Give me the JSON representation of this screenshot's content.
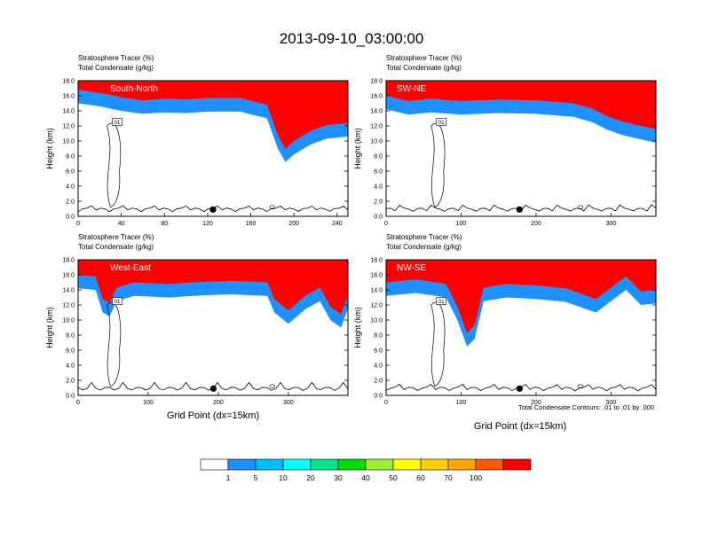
{
  "figure": {
    "title": "2013-09-10_03:00:00",
    "contour_note": "Total Condensate Contours: .01 to .01 by .000",
    "xlabel": "Grid Point (dx=15km)",
    "ylabel": "Height (km)",
    "field_labels": [
      "Stratosphere Tracer   (%)",
      "Total Condensate   (g/kg)"
    ]
  },
  "colors": {
    "levels": [
      "#ffffff",
      "#1e90ff",
      "#00bfff",
      "#00ffff",
      "#00e68a",
      "#00dd00",
      "#9aee33",
      "#ffff00",
      "#ffd000",
      "#ffa500",
      "#ff5a00",
      "#ff0000"
    ]
  },
  "colorbar": {
    "labels": [
      "1",
      "5",
      "10",
      "20",
      "30",
      "40",
      "50",
      "60",
      "70",
      "100"
    ]
  },
  "chart_data": [
    {
      "type": "heatmap",
      "panel": "South-North",
      "title": "South-North",
      "xlim": [
        0,
        250
      ],
      "ylim": [
        0,
        18
      ],
      "xticks": [
        0,
        40,
        80,
        120,
        160,
        200,
        240
      ],
      "yticks": [
        0.0,
        2.0,
        4.0,
        6.0,
        8.0,
        10.0,
        12.0,
        14.0,
        16.0,
        18.0
      ],
      "contour_label": "01",
      "marker_x": 125,
      "tracer_base_km": [
        [
          0,
          15.0
        ],
        [
          20,
          14.6
        ],
        [
          40,
          14.0
        ],
        [
          60,
          13.6
        ],
        [
          80,
          13.8
        ],
        [
          100,
          13.7
        ],
        [
          120,
          13.9
        ],
        [
          150,
          13.9
        ],
        [
          175,
          13.0
        ],
        [
          185,
          9.0
        ],
        [
          192,
          7.2
        ],
        [
          200,
          8.2
        ],
        [
          215,
          9.5
        ],
        [
          230,
          10.3
        ],
        [
          250,
          10.6
        ]
      ]
    },
    {
      "type": "heatmap",
      "panel": "SW-NE",
      "title": "SW-NE",
      "xlim": [
        0,
        360
      ],
      "ylim": [
        0,
        18
      ],
      "xticks": [
        0,
        100,
        200,
        300
      ],
      "yticks": [
        0.0,
        2.0,
        4.0,
        6.0,
        8.0,
        10.0,
        12.0,
        14.0,
        16.0,
        18.0
      ],
      "contour_label": "01",
      "marker_x": 178,
      "tracer_base_km": [
        [
          0,
          14.2
        ],
        [
          30,
          13.5
        ],
        [
          60,
          13.8
        ],
        [
          100,
          13.5
        ],
        [
          150,
          13.7
        ],
        [
          200,
          13.6
        ],
        [
          250,
          13.2
        ],
        [
          275,
          12.5
        ],
        [
          295,
          11.5
        ],
        [
          315,
          10.8
        ],
        [
          340,
          10.2
        ],
        [
          360,
          9.8
        ]
      ]
    },
    {
      "type": "heatmap",
      "panel": "West-East",
      "title": "West-East",
      "xlim": [
        0,
        385
      ],
      "ylim": [
        0,
        18
      ],
      "xticks": [
        0,
        100,
        200,
        300
      ],
      "yticks": [
        0.0,
        2.0,
        4.0,
        6.0,
        8.0,
        10.0,
        12.0,
        14.0,
        16.0,
        18.0
      ],
      "contour_label": "01",
      "marker_x": 193,
      "tracer_base_km": [
        [
          0,
          14.2
        ],
        [
          25,
          14.0
        ],
        [
          35,
          11.0
        ],
        [
          45,
          10.5
        ],
        [
          55,
          12.5
        ],
        [
          80,
          13.2
        ],
        [
          130,
          13.0
        ],
        [
          180,
          13.3
        ],
        [
          220,
          13.4
        ],
        [
          270,
          13.2
        ],
        [
          280,
          11.0
        ],
        [
          300,
          9.5
        ],
        [
          325,
          11.5
        ],
        [
          345,
          12.5
        ],
        [
          360,
          10.0
        ],
        [
          375,
          9.0
        ],
        [
          385,
          11.5
        ]
      ]
    },
    {
      "type": "heatmap",
      "panel": "NW-SE",
      "title": "NW-SE",
      "xlim": [
        0,
        360
      ],
      "ylim": [
        0,
        18
      ],
      "xticks": [
        0,
        100,
        200,
        300
      ],
      "yticks": [
        0.0,
        2.0,
        4.0,
        6.0,
        8.0,
        10.0,
        12.0,
        14.0,
        16.0,
        18.0
      ],
      "contour_label": "01",
      "marker_x": 178,
      "tracer_base_km": [
        [
          0,
          13.2
        ],
        [
          40,
          13.6
        ],
        [
          80,
          13.0
        ],
        [
          95,
          10.0
        ],
        [
          108,
          6.5
        ],
        [
          118,
          7.5
        ],
        [
          130,
          12.5
        ],
        [
          160,
          13.0
        ],
        [
          200,
          12.8
        ],
        [
          240,
          12.4
        ],
        [
          280,
          11.0
        ],
        [
          300,
          12.5
        ],
        [
          320,
          14.0
        ],
        [
          340,
          12.0
        ],
        [
          360,
          12.2
        ]
      ]
    }
  ]
}
